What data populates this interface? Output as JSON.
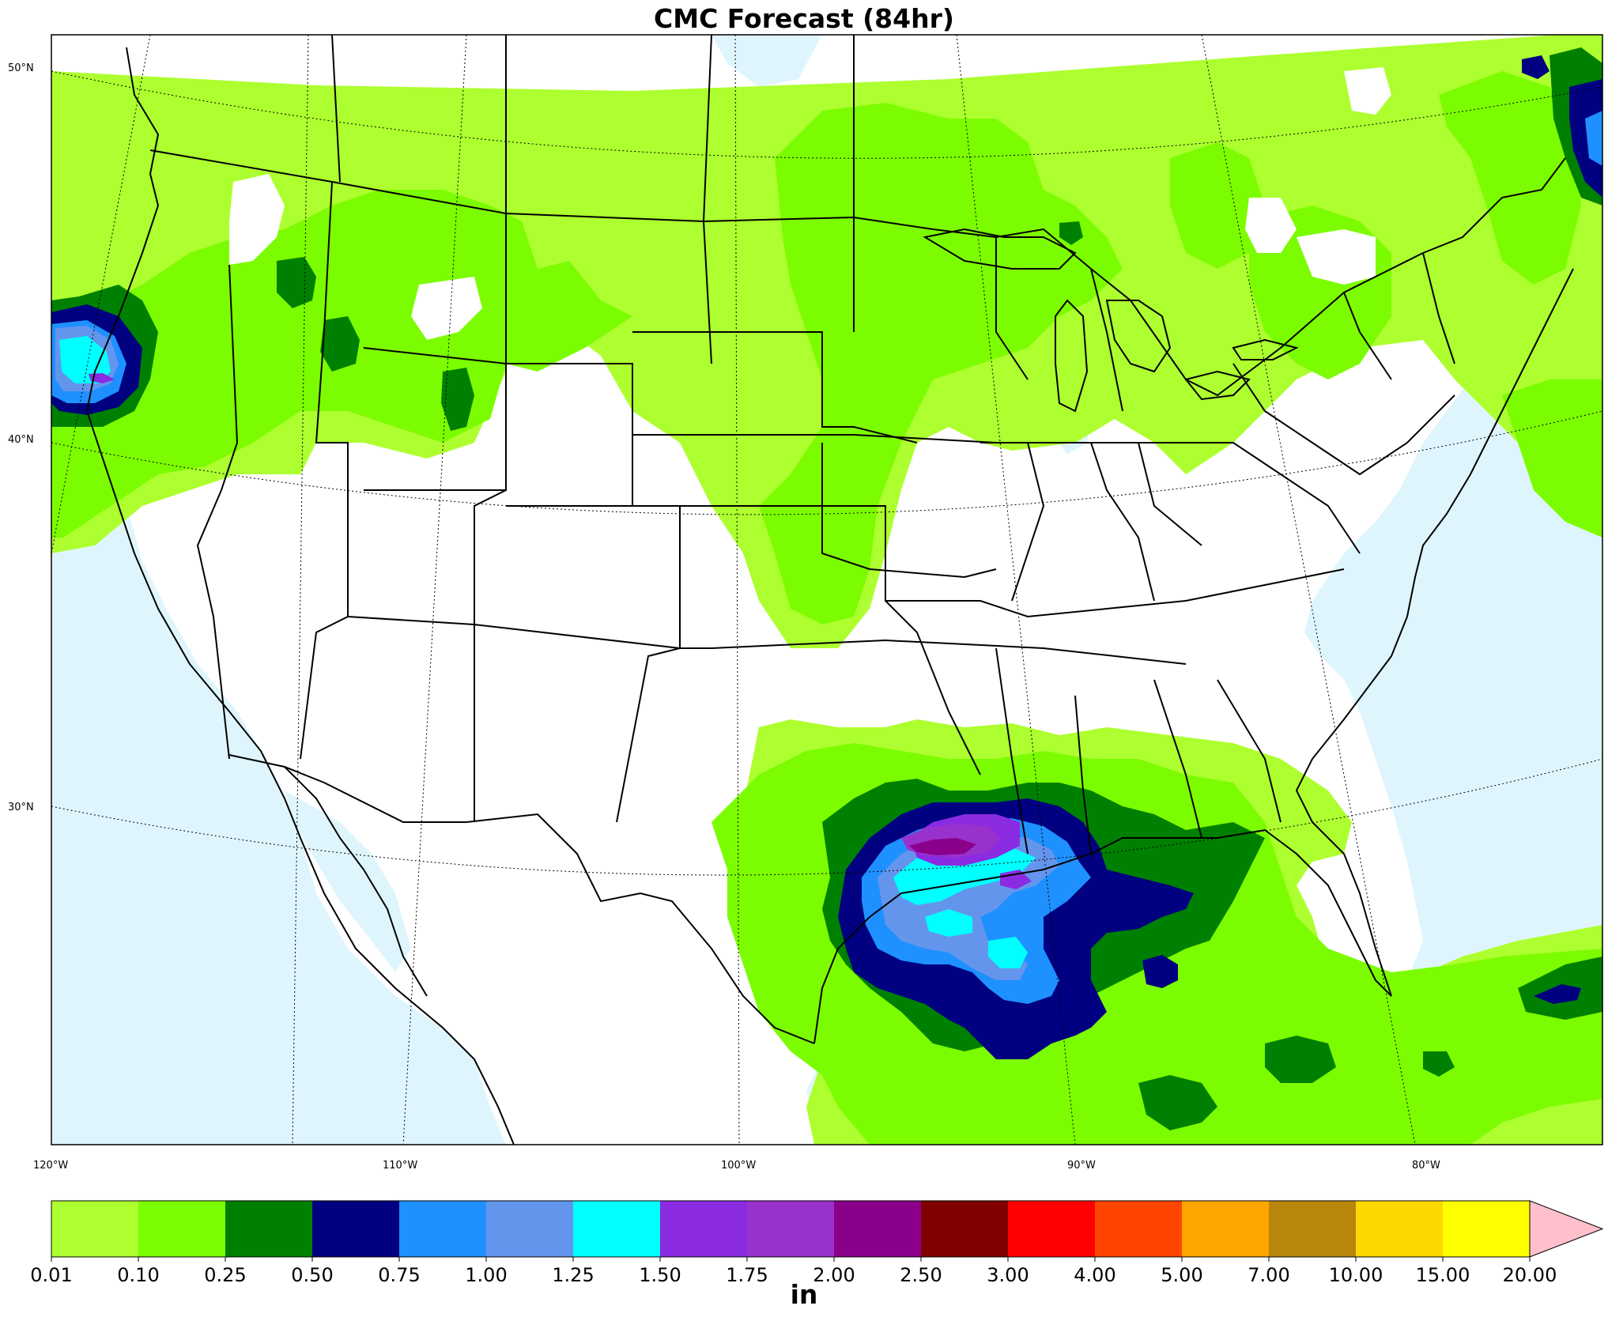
{
  "title": "CMC Forecast (84hr)",
  "units": "in",
  "lat_labels": [
    "50°N",
    "40°N",
    "30°N"
  ],
  "lon_labels": [
    "120°W",
    "110°W",
    "100°W",
    "90°W",
    "80°W"
  ],
  "colorbar": {
    "colors": [
      "#adff2f",
      "#7cfc00",
      "#008000",
      "#000080",
      "#1e90ff",
      "#6495ed",
      "#00ffff",
      "#8a2be2",
      "#9932cc",
      "#8b008b",
      "#800000",
      "#ff0000",
      "#ff4500",
      "#ffa500",
      "#b8860b",
      "#ffd700",
      "#ffff00"
    ],
    "extend_color": "#ffc0cb",
    "ticks": [
      "0.01",
      "0.10",
      "0.25",
      "0.50",
      "0.75",
      "1.00",
      "1.25",
      "1.50",
      "1.75",
      "2.00",
      "2.50",
      "3.00",
      "4.00",
      "5.00",
      "7.00",
      "10.00",
      "15.00",
      "20.00"
    ]
  },
  "colors": {
    "ocean": "#dff5fd",
    "land": "#ffffff",
    "boundary": "#000000"
  }
}
